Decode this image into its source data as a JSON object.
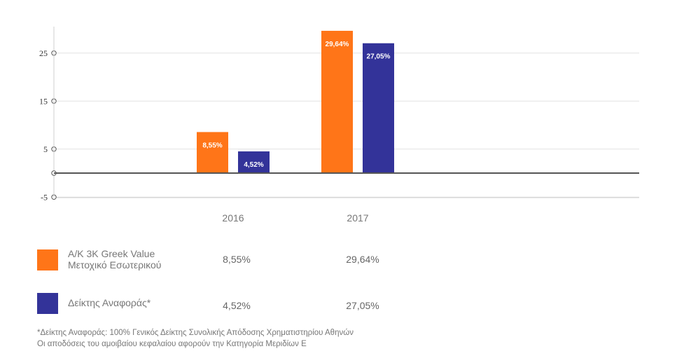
{
  "chart_data": {
    "type": "bar",
    "categories": [
      "2016",
      "2017"
    ],
    "series": [
      {
        "name": "A/K 3K Greek Value Μετοχικό Εσωτερικού",
        "values": [
          8.55,
          29.64
        ],
        "labels": [
          "8,55%",
          "29,64%"
        ],
        "color": "#ff7518"
      },
      {
        "name": "Δείκτης Αναφοράς*",
        "values": [
          4.52,
          27.05
        ],
        "labels": [
          "4,52%",
          "27,05%"
        ],
        "color": "#333399"
      }
    ],
    "y_ticks": [
      "25",
      "15",
      "5",
      "-5"
    ],
    "y_tick_values": [
      25,
      15,
      5,
      -5
    ],
    "ylim": [
      -5,
      31
    ],
    "grid": true,
    "legend": "bottom-left"
  },
  "legend_table": {
    "rows": [
      {
        "name_line1": "A/K 3K Greek Value",
        "name_line2": "Μετοχικό Εσωτερικού",
        "v2016": "8,55%",
        "v2017": "29,64%",
        "color": "#ff7518"
      },
      {
        "name_line1": "Δείκτης Αναφοράς*",
        "name_line2": "",
        "v2016": "4,52%",
        "v2017": "27,05%",
        "color": "#333399"
      }
    ]
  },
  "notes": {
    "line1": "*Δείκτης Αναφοράς: 100% Γενικός Δείκτης Συνολικής Απόδοσης Χρηματιστηρίου Αθηνών",
    "line2": "Οι αποδόσεις του αμοιβαίου κεφαλαίου αφορούν την Κατηγορία Μεριδίων Ε"
  }
}
